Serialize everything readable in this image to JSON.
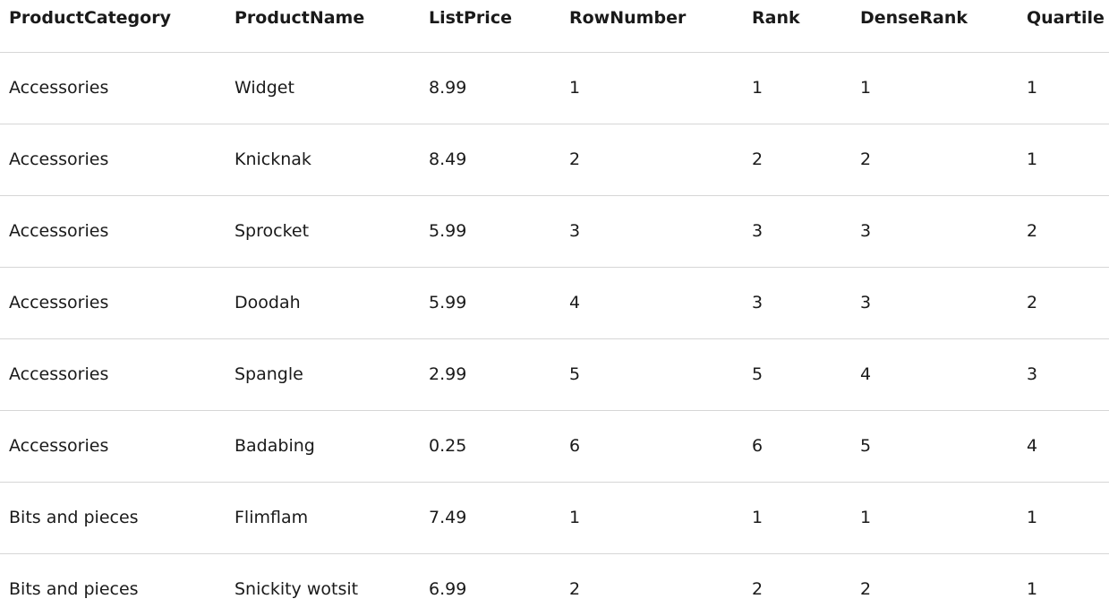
{
  "table": {
    "columns": [
      "ProductCategory",
      "ProductName",
      "ListPrice",
      "RowNumber",
      "Rank",
      "DenseRank",
      "Quartile"
    ],
    "rows": [
      [
        "Accessories",
        "Widget",
        "8.99",
        "1",
        "1",
        "1",
        "1"
      ],
      [
        "Accessories",
        "Knicknak",
        "8.49",
        "2",
        "2",
        "2",
        "1"
      ],
      [
        "Accessories",
        "Sprocket",
        "5.99",
        "3",
        "3",
        "3",
        "2"
      ],
      [
        "Accessories",
        "Doodah",
        "5.99",
        "4",
        "3",
        "3",
        "2"
      ],
      [
        "Accessories",
        "Spangle",
        "2.99",
        "5",
        "5",
        "4",
        "3"
      ],
      [
        "Accessories",
        "Badabing",
        "0.25",
        "6",
        "6",
        "5",
        "4"
      ],
      [
        "Bits and pieces",
        "Flimflam",
        "7.49",
        "1",
        "1",
        "1",
        "1"
      ],
      [
        "Bits and pieces",
        "Snickity wotsit",
        "6.99",
        "2",
        "2",
        "2",
        "1"
      ]
    ]
  }
}
